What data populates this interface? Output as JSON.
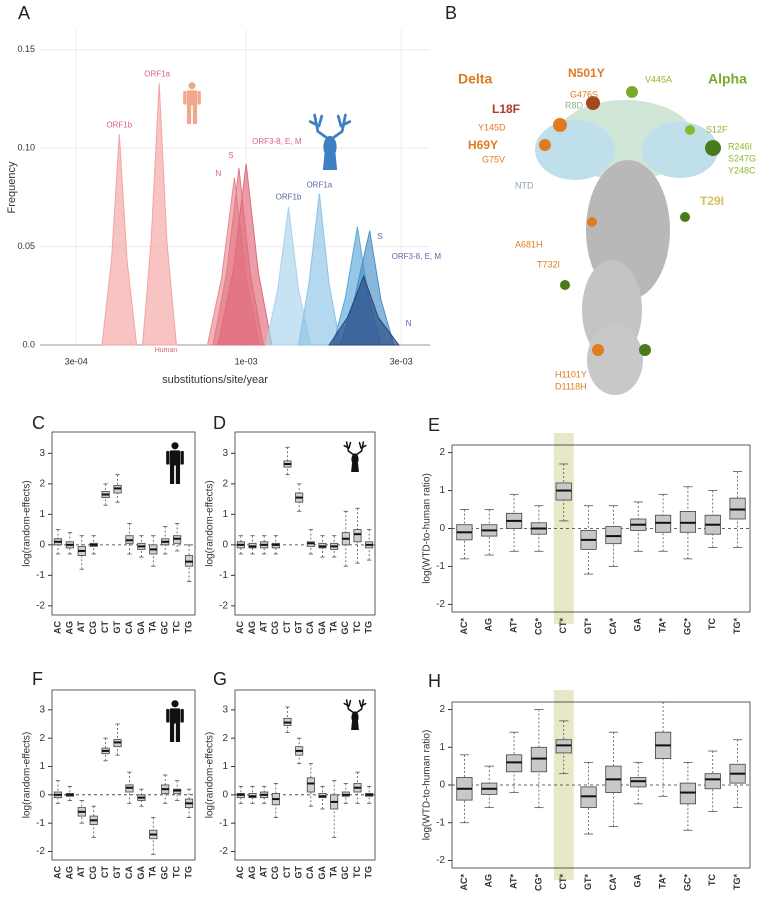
{
  "chart_data": [
    {
      "type": "density",
      "panel": "A",
      "xlabel": "substitutions/site/year",
      "ylabel": "Frequency",
      "log_x": true,
      "grid": true,
      "xlim": [
        0.000232,
        0.00368
      ],
      "xticks": [
        {
          "value": 0.0003,
          "label": "3e-04"
        },
        {
          "value": 0.001,
          "label": "1e-03"
        },
        {
          "value": 0.003,
          "label": "3e-03"
        }
      ],
      "ylim": [
        0,
        0.16
      ],
      "yticks": [
        {
          "value": 0,
          "label": "0.0"
        },
        0.05,
        {
          "value": 0.1,
          "label": "0.10"
        },
        0.15
      ],
      "annotation": "Human",
      "series": [
        {
          "name": "ORF1b",
          "color": "#f4a3a3",
          "label_color": "#e0607a",
          "x": [
            0.00036,
            0.000385,
            0.000407,
            0.00043,
            0.00046
          ],
          "values": [
            0,
            0.043,
            0.107,
            0.043,
            0
          ]
        },
        {
          "name": "ORF1a",
          "color": "#f4a3a3",
          "label_color": "#e0607a",
          "x": [
            0.00048,
            0.00051,
            0.00054,
            0.00057,
            0.00061
          ],
          "values": [
            0,
            0.053,
            0.133,
            0.053,
            0
          ]
        },
        {
          "name": "N",
          "color": "#e98a92",
          "label_color": "#e0607a",
          "x": [
            0.00076,
            0.00084,
            0.00092,
            0.001,
            0.0011
          ],
          "values": [
            0,
            0.034,
            0.085,
            0.034,
            0
          ]
        },
        {
          "name": "S",
          "color": "#e47a86",
          "label_color": "#e0607a",
          "x": [
            0.00079,
            0.00087,
            0.00095,
            0.00103,
            0.00113
          ],
          "values": [
            0,
            0.036,
            0.09,
            0.036,
            0
          ]
        },
        {
          "name": "ORF3-8, E, M",
          "color": "#e06a7a",
          "label_color": "#e0607a",
          "x": [
            0.00082,
            0.00091,
            0.001,
            0.00109,
            0.0012
          ],
          "values": [
            0,
            0.037,
            0.092,
            0.037,
            0
          ]
        },
        {
          "name": "ORF1b",
          "color": "#a9d2ec",
          "label_color": "#5a6aa8",
          "x": [
            0.00115,
            0.00125,
            0.00135,
            0.00145,
            0.00158
          ],
          "values": [
            0,
            0.028,
            0.07,
            0.028,
            0
          ]
        },
        {
          "name": "ORF1a",
          "color": "#8cc3e6",
          "label_color": "#5a6aa8",
          "x": [
            0.00145,
            0.00156,
            0.00168,
            0.0018,
            0.00195
          ],
          "values": [
            0,
            0.031,
            0.077,
            0.031,
            0
          ]
        },
        {
          "name": "S",
          "color": "#5aa8d8",
          "label_color": "#5a6aa8",
          "x": [
            0.00185,
            0.00202,
            0.0022,
            0.00238,
            0.0026
          ],
          "values": [
            0,
            0.024,
            0.06,
            0.024,
            0
          ]
        },
        {
          "name": "ORF3-8, E, M",
          "color": "#4a90c8",
          "label_color": "#5a6aa8",
          "x": [
            0.00195,
            0.00215,
            0.0024,
            0.0026,
            0.00285
          ],
          "values": [
            0,
            0.023,
            0.058,
            0.023,
            0
          ]
        },
        {
          "name": "N",
          "color": "#27457f",
          "label_color": "#5a6aa8",
          "x": [
            0.0018,
            0.00205,
            0.0023,
            0.00255,
            0.00295
          ],
          "values": [
            0,
            0.014,
            0.035,
            0.014,
            0
          ]
        }
      ]
    },
    {
      "type": "box",
      "panel": "C",
      "ylabel": "log(random-effects)",
      "ylim": [
        -2.3,
        3.7
      ],
      "yticks": [
        -2,
        -1,
        0,
        1,
        2,
        3
      ],
      "hline": 0,
      "color": "#d0d0d0",
      "categories": [
        "AC",
        "AG",
        "AT",
        "CG",
        "CT",
        "GT",
        "CA",
        "GA",
        "TA",
        "GC",
        "TC",
        "TG"
      ],
      "boxes": [
        [
          -0.3,
          0,
          0.1,
          0.2,
          0.5
        ],
        [
          -0.3,
          -0.1,
          0,
          0.1,
          0.4
        ],
        [
          -0.8,
          -0.35,
          -0.2,
          -0.05,
          0.3
        ],
        [
          -0.3,
          -0.05,
          0,
          0.05,
          0.3
        ],
        [
          1.3,
          1.55,
          1.65,
          1.75,
          2
        ],
        [
          1.4,
          1.7,
          1.85,
          1.95,
          2.3
        ],
        [
          -0.3,
          0.05,
          0.15,
          0.3,
          0.7
        ],
        [
          -0.4,
          -0.15,
          -0.05,
          0.05,
          0.3
        ],
        [
          -0.7,
          -0.3,
          -0.15,
          0,
          0.3
        ],
        [
          -0.3,
          0,
          0.1,
          0.2,
          0.6
        ],
        [
          -0.2,
          0.05,
          0.2,
          0.3,
          0.7
        ],
        [
          -1.2,
          -0.7,
          -0.55,
          -0.35,
          0
        ]
      ]
    },
    {
      "type": "box",
      "panel": "D",
      "ylabel": "log(random-effects)",
      "ylim": [
        -2.3,
        3.7
      ],
      "yticks": [
        -2,
        -1,
        0,
        1,
        2,
        3
      ],
      "hline": 0,
      "color": "#d0d0d0",
      "categories": [
        "AC",
        "AG",
        "AT",
        "CG",
        "CT",
        "GT",
        "CA",
        "GA",
        "TA",
        "GC",
        "TC",
        "TG"
      ],
      "boxes": [
        [
          -0.3,
          -0.1,
          0,
          0.1,
          0.3
        ],
        [
          -0.3,
          -0.1,
          -0.05,
          0.05,
          0.3
        ],
        [
          -0.3,
          -0.1,
          0,
          0.1,
          0.3
        ],
        [
          -0.3,
          -0.1,
          0,
          0.05,
          0.3
        ],
        [
          2.3,
          2.55,
          2.65,
          2.75,
          3.2
        ],
        [
          1.1,
          1.4,
          1.55,
          1.7,
          2
        ],
        [
          -0.3,
          -0.05,
          0.05,
          0.1,
          0.5
        ],
        [
          -0.4,
          -0.1,
          -0.05,
          0.05,
          0.3
        ],
        [
          -0.4,
          -0.15,
          -0.05,
          0.05,
          0.3
        ],
        [
          -0.7,
          0,
          0.2,
          0.4,
          1.1
        ],
        [
          -0.6,
          0.1,
          0.35,
          0.5,
          1.2
        ],
        [
          -0.5,
          -0.1,
          0,
          0.1,
          0.5
        ]
      ]
    },
    {
      "type": "box",
      "panel": "E",
      "ylabel": "log(WTD-to-human ratio)",
      "ylim": [
        -2.2,
        2.2
      ],
      "yticks": [
        -2,
        -1,
        0,
        1,
        2
      ],
      "hline": 0,
      "color": "#c8c8c8",
      "highlight": "CT*",
      "highlight_color": "#e6e8c8",
      "categories": [
        "AC*",
        "AG",
        "AT*",
        "CG*",
        "CT*",
        "GT*",
        "CA*",
        "GA",
        "TA*",
        "GC*",
        "TC",
        "TG*"
      ],
      "boxes": [
        [
          -0.8,
          -0.3,
          -0.1,
          0.1,
          0.5
        ],
        [
          -0.7,
          -0.2,
          -0.05,
          0.1,
          0.5
        ],
        [
          -0.6,
          0,
          0.2,
          0.4,
          0.9
        ],
        [
          -0.6,
          -0.15,
          0,
          0.15,
          0.6
        ],
        [
          0.2,
          0.75,
          1,
          1.2,
          1.7
        ],
        [
          -1.2,
          -0.55,
          -0.3,
          -0.05,
          0.6
        ],
        [
          -1,
          -0.4,
          -0.2,
          0.05,
          0.6
        ],
        [
          -0.6,
          -0.05,
          0.1,
          0.25,
          0.7
        ],
        [
          -0.6,
          -0.1,
          0.15,
          0.35,
          0.9
        ],
        [
          -0.8,
          -0.1,
          0.15,
          0.45,
          1.1
        ],
        [
          -0.5,
          -0.15,
          0.1,
          0.35,
          1
        ],
        [
          -0.5,
          0.25,
          0.5,
          0.8,
          1.5
        ]
      ]
    },
    {
      "type": "box",
      "panel": "F",
      "ylabel": "log(random-effects)",
      "ylim": [
        -2.3,
        3.7
      ],
      "yticks": [
        -2,
        -1,
        0,
        1,
        2,
        3
      ],
      "hline": 0,
      "color": "#d0d0d0",
      "categories": [
        "AC",
        "AG",
        "AT",
        "CG",
        "CT",
        "GT",
        "CA",
        "GA",
        "TA",
        "GC",
        "TC",
        "TG"
      ],
      "boxes": [
        [
          -0.3,
          -0.1,
          0,
          0.1,
          0.5
        ],
        [
          -0.2,
          -0.05,
          0,
          0.05,
          0.3
        ],
        [
          -1,
          -0.75,
          -0.6,
          -0.45,
          -0.2
        ],
        [
          -1.5,
          -1.05,
          -0.9,
          -0.75,
          -0.4
        ],
        [
          1.2,
          1.45,
          1.55,
          1.65,
          2
        ],
        [
          1.4,
          1.7,
          1.85,
          1.95,
          2.5
        ],
        [
          -0.3,
          0.1,
          0.25,
          0.35,
          0.8
        ],
        [
          -0.4,
          -0.2,
          -0.1,
          0,
          0.2
        ],
        [
          -2.1,
          -1.55,
          -1.4,
          -1.25,
          -0.8
        ],
        [
          -0.3,
          0.05,
          0.2,
          0.35,
          0.7
        ],
        [
          -0.2,
          0.05,
          0.15,
          0.2,
          0.5
        ],
        [
          -0.8,
          -0.45,
          -0.3,
          -0.15,
          0.2
        ]
      ]
    },
    {
      "type": "box",
      "panel": "G",
      "ylabel": "log(random-effects)",
      "ylim": [
        -2.3,
        3.7
      ],
      "yticks": [
        -2,
        -1,
        0,
        1,
        2,
        3
      ],
      "hline": 0,
      "color": "#d0d0d0",
      "categories": [
        "AC",
        "AG",
        "AT",
        "CG",
        "CT",
        "GT",
        "CA",
        "GA",
        "TA",
        "GC",
        "TC",
        "TG"
      ],
      "boxes": [
        [
          -0.3,
          -0.1,
          0,
          0.05,
          0.3
        ],
        [
          -0.3,
          -0.1,
          -0.05,
          0.05,
          0.3
        ],
        [
          -0.3,
          -0.1,
          0,
          0.1,
          0.3
        ],
        [
          -0.8,
          -0.35,
          -0.15,
          0.05,
          0.4
        ],
        [
          2.2,
          2.45,
          2.55,
          2.7,
          3.1
        ],
        [
          1.1,
          1.4,
          1.55,
          1.7,
          2
        ],
        [
          -0.4,
          0.1,
          0.4,
          0.6,
          1.1
        ],
        [
          -0.5,
          -0.1,
          -0.05,
          0.05,
          0.3
        ],
        [
          -1.5,
          -0.5,
          -0.25,
          0,
          0.5
        ],
        [
          -0.3,
          -0.05,
          0,
          0.1,
          0.4
        ],
        [
          -0.3,
          0.1,
          0.25,
          0.4,
          0.8
        ],
        [
          -0.3,
          -0.05,
          0,
          0.05,
          0.3
        ]
      ]
    },
    {
      "type": "box",
      "panel": "H",
      "ylabel": "log(WTD-to-human ratio)",
      "ylim": [
        -2.2,
        2.2
      ],
      "yticks": [
        -2,
        -1,
        0,
        1,
        2
      ],
      "hline": 0,
      "color": "#c8c8c8",
      "highlight": "CT*",
      "highlight_color": "#e6e8c8",
      "categories": [
        "AC*",
        "AG",
        "AT*",
        "CG*",
        "CT*",
        "GT*",
        "CA*",
        "GA",
        "TA*",
        "GC*",
        "TC",
        "TG*"
      ],
      "boxes": [
        [
          -1,
          -0.4,
          -0.1,
          0.2,
          0.8
        ],
        [
          -0.6,
          -0.25,
          -0.1,
          0.05,
          0.5
        ],
        [
          -0.2,
          0.35,
          0.6,
          0.8,
          1.4
        ],
        [
          -0.6,
          0.35,
          0.7,
          1,
          2
        ],
        [
          0.3,
          0.85,
          1.05,
          1.2,
          1.7
        ],
        [
          -1.3,
          -0.6,
          -0.3,
          -0.05,
          0.6
        ],
        [
          -1.1,
          -0.2,
          0.15,
          0.5,
          1.4
        ],
        [
          -0.5,
          -0.05,
          0.1,
          0.2,
          0.6
        ],
        [
          -0.3,
          0.7,
          1.05,
          1.4,
          2.2
        ],
        [
          -1.2,
          -0.5,
          -0.2,
          0.05,
          0.6
        ],
        [
          -0.7,
          -0.1,
          0.15,
          0.3,
          0.9
        ],
        [
          -0.6,
          0.05,
          0.3,
          0.55,
          1.2
        ]
      ]
    }
  ],
  "structure": {
    "panel": "B",
    "labels": [
      {
        "text": "Delta",
        "color": "#d97a1e"
      },
      {
        "text": "N501Y",
        "color": "#e07b20"
      },
      {
        "text": "V445A",
        "color": "#8ab82a"
      },
      {
        "text": "Alpha",
        "color": "#7aaa2a"
      },
      {
        "text": "L18F",
        "color": "#b03a2e"
      },
      {
        "text": "G476S",
        "color": "#e07b20"
      },
      {
        "text": "R8D",
        "color": "#9aaa8a"
      },
      {
        "text": "Y145D",
        "color": "#e07b20"
      },
      {
        "text": "H69Y",
        "color": "#e07b20"
      },
      {
        "text": "G75V",
        "color": "#e07b20"
      },
      {
        "text": "S12F",
        "color": "#8ab82a"
      },
      {
        "text": "R246I",
        "color": "#8ab82a"
      },
      {
        "text": "S247G",
        "color": "#8ab82a"
      },
      {
        "text": "Y248C",
        "color": "#8ab82a"
      },
      {
        "text": "NTD",
        "color": "#8aa0b0"
      },
      {
        "text": "T29I",
        "color": "#d8c060"
      },
      {
        "text": "A681H",
        "color": "#e07b20"
      },
      {
        "text": "T732I",
        "color": "#e07b20"
      },
      {
        "text": "H1101Y",
        "color": "#e07b20"
      },
      {
        "text": "D1118H",
        "color": "#e07b20"
      }
    ]
  }
}
